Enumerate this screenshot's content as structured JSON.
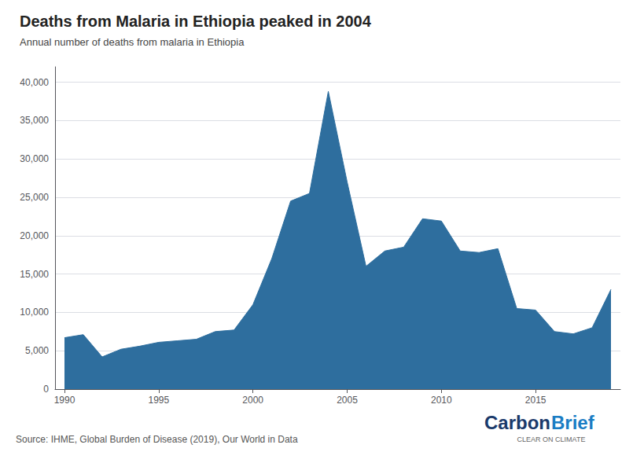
{
  "chart_data": {
    "type": "area",
    "title": "Deaths from Malaria in Ethiopia peaked in 2004",
    "subtitle": "Annual number of deaths from malaria in Ethiopia",
    "source": "Source: IHME, Global Burden of Disease (2019), Our World in Data",
    "x": [
      1990,
      1991,
      1992,
      1993,
      1994,
      1995,
      1996,
      1997,
      1998,
      1999,
      2000,
      2001,
      2002,
      2003,
      2004,
      2005,
      2006,
      2007,
      2008,
      2009,
      2010,
      2011,
      2012,
      2013,
      2014,
      2015,
      2016,
      2017,
      2018,
      2019
    ],
    "values": [
      6700,
      7100,
      4200,
      5200,
      5600,
      6100,
      6300,
      6500,
      7500,
      7700,
      11000,
      17000,
      24500,
      25500,
      38800,
      27000,
      16000,
      18000,
      18500,
      22200,
      21900,
      18000,
      17800,
      18300,
      10500,
      10300,
      7500,
      7200,
      8000,
      13000
    ],
    "color": "#2e6e9e",
    "xlim": [
      1989.5,
      2019.5
    ],
    "xticks": [
      1990,
      1995,
      2000,
      2005,
      2010,
      2015
    ],
    "ylim": [
      0,
      42000
    ],
    "yticks": [
      0,
      {
        "value": 5000,
        "label": "5,000"
      },
      {
        "value": 10000,
        "label": "10,000"
      },
      {
        "value": 15000,
        "label": "15,000"
      },
      {
        "value": 20000,
        "label": "20,000"
      },
      {
        "value": 25000,
        "label": "25,000"
      },
      {
        "value": 30000,
        "label": "30,000"
      },
      {
        "value": 35000,
        "label": "35,000"
      },
      {
        "value": 40000,
        "label": "40,000"
      }
    ],
    "grid": true,
    "annotations": [
      {
        "text": "Carbon",
        "color": "#1a3a6b"
      },
      {
        "text": "Brief",
        "color": "#1a7dc4"
      },
      {
        "text": "CLEAR ON CLIMATE",
        "color": "#666666"
      }
    ]
  }
}
